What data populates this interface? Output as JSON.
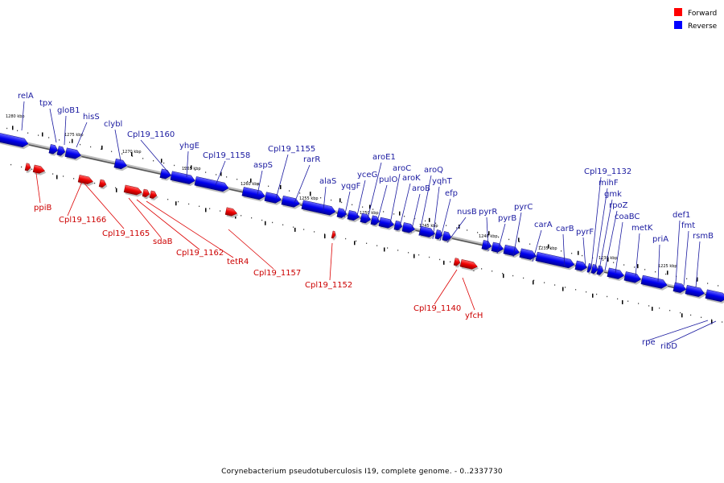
{
  "legend": {
    "forward": {
      "label": "Forward",
      "color": "#ff0000"
    },
    "reverse": {
      "label": "Reverse",
      "color": "#0000ff"
    }
  },
  "caption": "Corynebacterium pseudotuberculosis I19, complete genome. - 0..2337730",
  "scale_labels": [
    "1280 kbp",
    "1275 kbp",
    "1270 kbp",
    "1265 kbp",
    "1260 kbp",
    "1255 kbp",
    "1250 kbp",
    "1245 kbp",
    "1240 kbp",
    "1235 kbp",
    "1230 kbp",
    "1225 kbp"
  ],
  "reverse_genes": [
    "relA",
    "tpx",
    "gloB1",
    "hisS",
    "clybl",
    "Cpl19_1160",
    "yhgE",
    "Cpl19_1158",
    "aspS",
    "Cpl19_1155",
    "rarR",
    "alaS",
    "yqgF",
    "yceG",
    "aroE1",
    "pulO",
    "aroC",
    "aroK",
    "aroB",
    "aroQ",
    "yqhT",
    "efp",
    "nusB",
    "pyrR",
    "pyrB",
    "pyrC",
    "carA",
    "carB",
    "pyrF",
    "Cpl19_1132",
    "mihF",
    "gmk",
    "rpoZ",
    "coaBC",
    "metK",
    "priA",
    "def1",
    "fmt",
    "rsmB",
    "rpe",
    "ribD"
  ],
  "forward_genes": [
    "ppiB",
    "Cpl19_1166",
    "Cpl19_1165",
    "sdaB",
    "Cpl19_1162",
    "tetR4",
    "Cpl19_1157",
    "Cpl19_1152",
    "Cpl19_1140",
    "yfcH"
  ]
}
